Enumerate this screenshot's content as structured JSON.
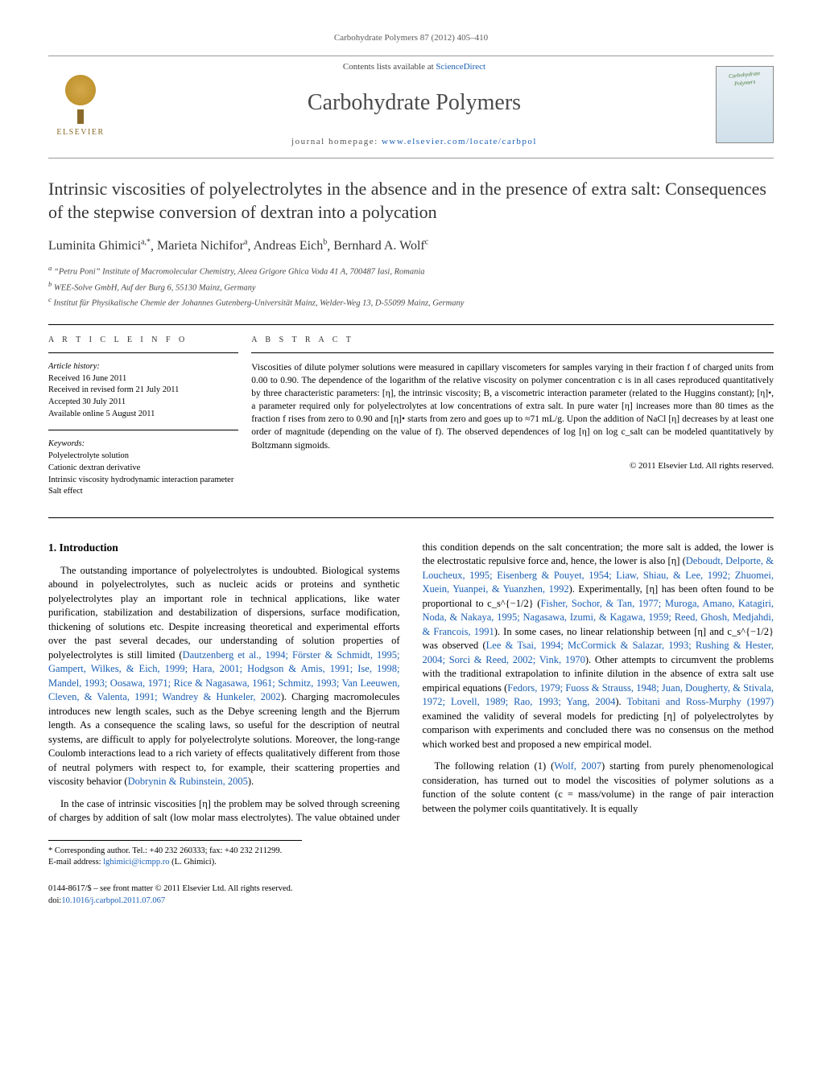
{
  "journal_ref": "Carbohydrate Polymers 87 (2012) 405–410",
  "contents_prefix": "Contents lists available at ",
  "contents_link": "ScienceDirect",
  "journal_title": "Carbohydrate Polymers",
  "homepage_prefix": "journal homepage: ",
  "homepage_url": "www.elsevier.com/locate/carbpol",
  "cover_label1": "Carbohydrate",
  "cover_label2": "Polymers",
  "publisher_label": "ELSEVIER",
  "article_title": "Intrinsic viscosities of polyelectrolytes in the absence and in the presence of extra salt: Consequences of the stepwise conversion of dextran into a polycation",
  "authors_html": "Luminita Ghimici^{a,*}, Marieta Nichifor^{a}, Andreas Eich^{b}, Bernhard A. Wolf^{c}",
  "authors": [
    {
      "name": "Luminita Ghimici",
      "sup": "a,*"
    },
    {
      "name": "Marieta Nichifor",
      "sup": "a"
    },
    {
      "name": "Andreas Eich",
      "sup": "b"
    },
    {
      "name": "Bernhard A. Wolf",
      "sup": "c"
    }
  ],
  "affiliations": [
    {
      "sup": "a",
      "text": "“Petru Poni” Institute of Macromolecular Chemistry, Aleea Grigore Ghica Voda 41 A, 700487 Iasi, Romania"
    },
    {
      "sup": "b",
      "text": "WEE-Solve GmbH, Auf der Burg 6, 55130 Mainz, Germany"
    },
    {
      "sup": "c",
      "text": "Institut für Physikalische Chemie der Johannes Gutenberg-Universität Mainz, Welder-Weg 13, D-55099 Mainz, Germany"
    }
  ],
  "article_info_heading": "a r t i c l e   i n f o",
  "abstract_heading": "a b s t r a c t",
  "history_label": "Article history:",
  "history": [
    "Received 16 June 2011",
    "Received in revised form 21 July 2011",
    "Accepted 30 July 2011",
    "Available online 5 August 2011"
  ],
  "keywords_label": "Keywords:",
  "keywords": [
    "Polyelectrolyte solution",
    "Cationic dextran derivative",
    "Intrinsic viscosity hydrodynamic interaction parameter",
    "Salt effect"
  ],
  "abstract_text": "Viscosities of dilute polymer solutions were measured in capillary viscometers for samples varying in their fraction f of charged units from 0.00 to 0.90. The dependence of the logarithm of the relative viscosity on polymer concentration c is in all cases reproduced quantitatively by three characteristic parameters: [η], the intrinsic viscosity; B, a viscometric interaction parameter (related to the Huggins constant); [η]•, a parameter required only for polyelectrolytes at low concentrations of extra salt. In pure water [η] increases more than 80 times as the fraction f rises from zero to 0.90 and [η]• starts from zero and goes up to ≈71 mL/g. Upon the addition of NaCl [η] decreases by at least one order of magnitude (depending on the value of f). The observed dependences of log [η] on log c_salt can be modeled quantitatively by Boltzmann sigmoids.",
  "copyright": "© 2011 Elsevier Ltd. All rights reserved.",
  "section1_heading": "1. Introduction",
  "para1": "The outstanding importance of polyelectrolytes is undoubted. Biological systems abound in polyelectrolytes, such as nucleic acids or proteins and synthetic polyelectrolytes play an important role in technical applications, like water purification, stabilization and destabilization of dispersions, surface modification, thickening of solutions etc. Despite increasing theoretical and experimental efforts over the past several decades, our understanding of solution properties of polyelectrolytes is still limited (",
  "para1_refs": "Dautzenberg et al., 1994; Förster & Schmidt, 1995; Gampert, Wilkes, & Eich, 1999; Hara, 2001; Hodgson & Amis, 1991; Ise, 1998; Mandel, 1993; Oosawa, 1971; Rice & Nagasawa, 1961; Schmitz, 1993; Van Leeuwen, Cleven, & Valenta, 1991; Wandrey & Hunkeler, 2002",
  "para1_b": "). Charging macromolecules introduces new length scales, such as the Debye screening length and the Bjerrum length. As a consequence the scaling laws, so useful for the description of neutral systems, are difficult to apply for polyelectrolyte solutions. Moreover, the long-range Coulomb interactions lead to a rich variety of effects qualitatively different from those of neutral polymers with respect to, for example, their scattering properties and viscosity behavior (",
  "para1_refs_b": "Dobrynin & Rubinstein, 2005",
  "para1_c": ").",
  "para2": "In the case of intrinsic viscosities [η] the problem may be solved through screening of charges by addition of salt (low molar mass electrolytes). The value obtained under this condition depends on the salt concentration; the more salt is added, the lower is the electrostatic repulsive force and, hence, the lower is also [η] (",
  "para2_refs": "Deboudt, Delporte, & Loucheux, 1995; Eisenberg & Pouyet, 1954; Liaw, Shiau, & Lee, 1992; Zhuomei, Xuein, Yuanpei, & Yuanzhen, 1992",
  "para2_b": "). Experimentally, [η] has been often found to be proportional to c_s^{−1/2} (",
  "para2_refs_b": "Fisher, Sochor, & Tan, 1977; Muroga, Amano, Katagiri, Noda, & Nakaya, 1995; Nagasawa, Izumi, & Kagawa, 1959; Reed, Ghosh, Medjahdi, & Francois, 1991",
  "para2_c": "). In some cases, no linear relationship between [η] and c_s^{−1/2} was observed (",
  "para2_refs_c": "Lee & Tsai, 1994; McCormick & Salazar, 1993; Rushing & Hester, 2004; Sorci & Reed, 2002; Vink, 1970",
  "para2_d": "). Other attempts to circumvent the problems with the traditional extrapolation to infinite dilution in the absence of extra salt use empirical equations (",
  "para2_refs_d": "Fedors, 1979; Fuoss & Strauss, 1948; Juan, Dougherty, & Stivala, 1972; Lovell, 1989; Rao, 1993; Yang, 2004",
  "para2_e": "). ",
  "para2_refs_e": "Tobitani and Ross-Murphy (1997)",
  "para2_f": " examined the validity of several models for predicting [η] of polyelectrolytes by comparison with experiments and concluded there was no consensus on the method which worked best and proposed a new empirical model.",
  "para3": "The following relation (1) (",
  "para3_refs": "Wolf, 2007",
  "para3_b": ") starting from purely phenomenological consideration, has turned out to model the viscosities of polymer solutions as a function of the solute content (c = mass/volume) in the range of pair interaction between the polymer coils quantitatively. It is equally",
  "corr_label": "* Corresponding author. Tel.: +40 232 260333; fax: +40 232 211299.",
  "email_label": "E-mail address: ",
  "email": "lghimici@icmpp.ro",
  "email_person": " (L. Ghimici).",
  "footer_issn": "0144-8617/$ – see front matter © 2011 Elsevier Ltd. All rights reserved.",
  "footer_doi_label": "doi:",
  "footer_doi": "10.1016/j.carbpol.2011.07.067",
  "colors": {
    "link": "#1a5fb4",
    "text": "#000000",
    "muted": "#555555",
    "rule": "#000000"
  }
}
